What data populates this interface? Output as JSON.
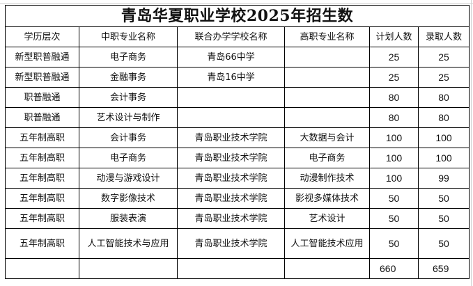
{
  "title": "青岛华夏职业学校2025年招生数",
  "headers": [
    "学历层次",
    "中职专业名称",
    "联合办学学校名称",
    "高职专业名称",
    "计划人数",
    "录取人数"
  ],
  "rows": [
    [
      "新型职普融通",
      "电子商务",
      "青岛66中学",
      "",
      "25",
      "25"
    ],
    [
      "新型职普融通",
      "金融事务",
      "青岛16中学",
      "",
      "25",
      "25"
    ],
    [
      "职普融通",
      "会计事务",
      "",
      "",
      "80",
      "80"
    ],
    [
      "职普融通",
      "艺术设计与制作",
      "",
      "",
      "80",
      "80"
    ],
    [
      "五年制高职",
      "会计事务",
      "青岛职业技术学院",
      "大数据与会计",
      "100",
      "100"
    ],
    [
      "五年制高职",
      "电子商务",
      "青岛职业技术学院",
      "电子商务",
      "100",
      "100"
    ],
    [
      "五年制高职",
      "动漫与游戏设计",
      "青岛职业技术学院",
      "动漫制作技术",
      "100",
      "99"
    ],
    [
      "五年制高职",
      "数字影像技术",
      "青岛职业技术学院",
      "影视多媒体技术",
      "50",
      "50"
    ],
    [
      "五年制高职",
      "服装表演",
      "青岛职业技术学院",
      "艺术设计",
      "50",
      "50"
    ],
    [
      "五年制高职",
      "人工智能技术与应用",
      "青岛职业技术学院",
      "人工智能技术应用",
      "50",
      "50"
    ]
  ],
  "totals": [
    "",
    "",
    "",
    "",
    "660",
    "659"
  ]
}
